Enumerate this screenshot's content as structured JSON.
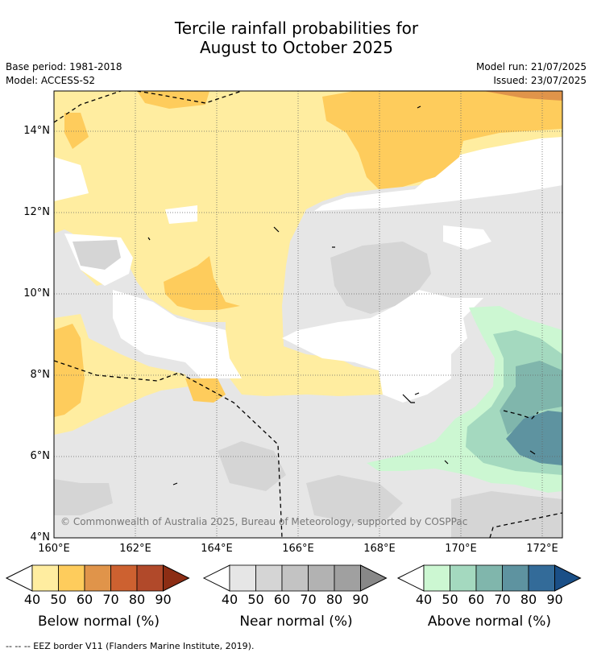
{
  "title_line1": "Tercile rainfall probabilities for",
  "title_line2": "August to October 2025",
  "base_period": "Base period: 1981-2018",
  "model": "Model: ACCESS-S2",
  "model_run": "Model run: 21/07/2025",
  "issued": "Issued: 23/07/2025",
  "copyright": "© Commonwealth of Australia 2025, Bureau of Meteorology, supported by COSPPac",
  "footnote": "--  --  -- EEZ border V11 (Flanders Marine Institute, 2019).",
  "lat_labels": [
    "14°N",
    "12°N",
    "10°N",
    "8°N",
    "6°N",
    "4°N"
  ],
  "lon_labels": [
    "160°E",
    "162°E",
    "164°E",
    "166°E",
    "168°E",
    "170°E",
    "172°E"
  ],
  "colorbars": [
    {
      "name": "Below normal (%)",
      "ticks": [
        "40",
        "50",
        "60",
        "70",
        "80",
        "90"
      ],
      "colors": [
        "#ffeda0",
        "#fecc5c",
        "#e0944a",
        "#cd6130",
        "#b1492a",
        "#8c2d14"
      ]
    },
    {
      "name": "Near normal (%)",
      "ticks": [
        "40",
        "50",
        "60",
        "70",
        "80",
        "90"
      ],
      "colors": [
        "#e6e6e6",
        "#d5d5d5",
        "#c3c3c3",
        "#b2b2b2",
        "#a0a0a0",
        "#888888"
      ]
    },
    {
      "name": "Above normal (%)",
      "ticks": [
        "40",
        "50",
        "60",
        "70",
        "80",
        "90"
      ],
      "colors": [
        "#ccf7d2",
        "#a4d9bf",
        "#80b6ac",
        "#5e93a0",
        "#336b99",
        "#1a4f87"
      ]
    }
  ]
}
